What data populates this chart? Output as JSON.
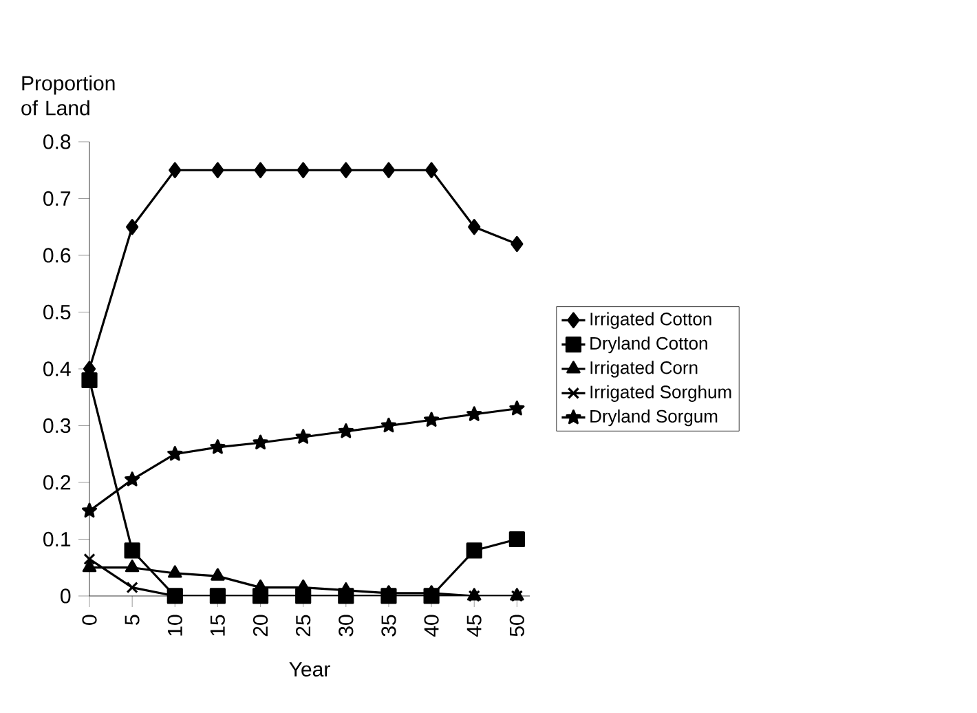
{
  "chart_data": {
    "type": "line",
    "xlabel": "Year",
    "ylabel": "Proportion of Land",
    "categories": [
      "0",
      "5",
      "10",
      "15",
      "20",
      "25",
      "30",
      "35",
      "40",
      "45",
      "50"
    ],
    "ylim": [
      0,
      0.8
    ],
    "yticks": [
      0,
      0.1,
      0.2,
      0.3,
      0.4,
      0.5,
      0.6,
      0.7,
      0.8
    ],
    "grid": false,
    "legend": "right",
    "series": [
      {
        "name": "Irrigated  Cotton",
        "color": "#000000",
        "marker": "diamond",
        "values": [
          0.4,
          0.65,
          0.75,
          0.75,
          0.75,
          0.75,
          0.75,
          0.75,
          0.75,
          0.65,
          0.62
        ]
      },
      {
        "name": "Dryland  Cotton",
        "color": "#000000",
        "marker": "square",
        "values": [
          0.38,
          0.08,
          0,
          0,
          0,
          0,
          0,
          0,
          0,
          0.08,
          0.1
        ]
      },
      {
        "name": "Irrigated  Corn",
        "color": "#000000",
        "marker": "triangle",
        "values": [
          0.05,
          0.05,
          0.04,
          0.035,
          0.015,
          0.015,
          0.01,
          0.005,
          0.005,
          0,
          0
        ]
      },
      {
        "name": "Irrigated  Sorghum",
        "color": "#000000",
        "marker": "cross",
        "values": [
          0.065,
          0.015,
          0,
          0,
          0,
          0,
          0,
          0,
          0,
          0,
          0
        ]
      },
      {
        "name": "Dryland  Sorgum",
        "color": "#000000",
        "marker": "star",
        "values": [
          0.15,
          0.205,
          0.25,
          0.262,
          0.27,
          0.28,
          0.29,
          0.3,
          0.31,
          0.32,
          0.33
        ]
      }
    ]
  }
}
